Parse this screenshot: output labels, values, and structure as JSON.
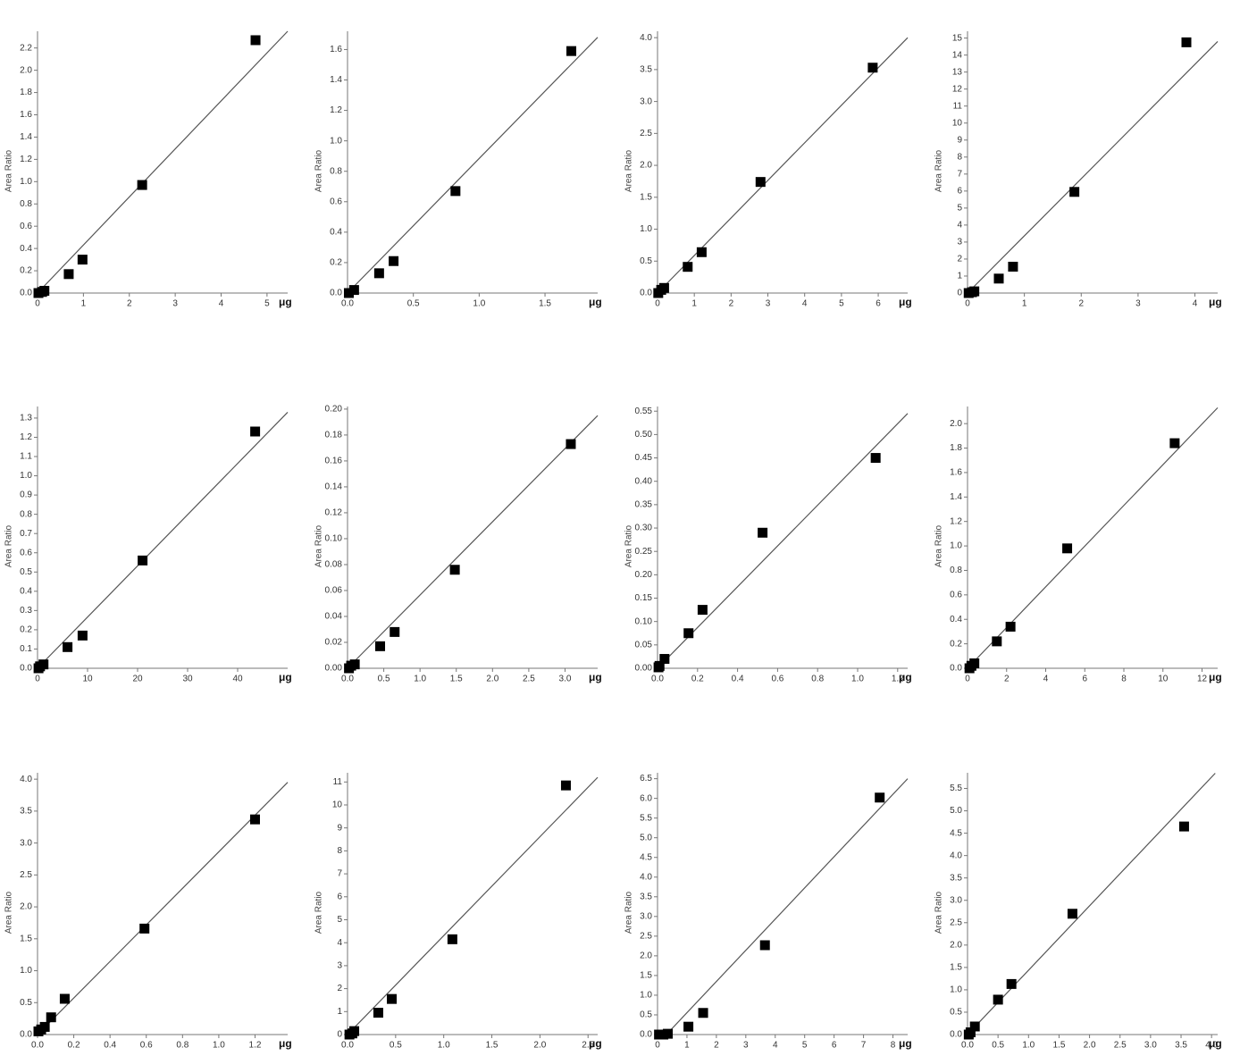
{
  "chart_data": [
    {
      "type": "scatter",
      "xlabel": "μg",
      "ylabel": "Area Ratio",
      "color": "#000000",
      "line_color": "#555555",
      "x": [
        0.02,
        0.1,
        0.15,
        0.68,
        0.98,
        2.28,
        4.75
      ],
      "y": [
        0,
        0.01,
        0.02,
        0.17,
        0.3,
        0.97,
        2.27
      ],
      "fit_line": {
        "x": [
          0,
          5.45
        ],
        "y": [
          0,
          2.35
        ]
      },
      "xlim": [
        0,
        5.45
      ],
      "ylim": [
        0,
        2.35
      ],
      "xticks": [
        0,
        1,
        2,
        3,
        4,
        5
      ],
      "yticks": [
        {
          "value": 0,
          "label": "0.0"
        },
        0.2,
        0.4,
        0.6,
        0.8,
        {
          "value": 1,
          "label": "1.0"
        },
        1.2,
        1.4,
        1.6,
        1.8,
        {
          "value": 2,
          "label": "2.0"
        },
        2.2
      ]
    },
    {
      "type": "scatter",
      "xlabel": "μg",
      "ylabel": "Area Ratio",
      "color": "#000000",
      "line_color": "#555555",
      "x": [
        0.01,
        0.05,
        0.24,
        0.35,
        0.82,
        1.7
      ],
      "y": [
        0,
        0.02,
        0.13,
        0.21,
        0.67,
        1.59
      ],
      "fit_line": {
        "x": [
          0,
          1.9
        ],
        "y": [
          0,
          1.68
        ]
      },
      "xlim": [
        0,
        1.9
      ],
      "ylim": [
        0,
        1.72
      ],
      "xticks": [
        {
          "value": 0,
          "label": "0.0"
        },
        0.5,
        {
          "value": 1,
          "label": "1.0"
        },
        1.5
      ],
      "yticks": [
        {
          "value": 0,
          "label": "0.0"
        },
        0.2,
        0.4,
        0.6,
        0.8,
        {
          "value": 1,
          "label": "1.0"
        },
        1.2,
        1.4,
        1.6
      ]
    },
    {
      "type": "scatter",
      "xlabel": "μg",
      "ylabel": "Area Ratio",
      "color": "#000000",
      "line_color": "#555555",
      "x": [
        0.02,
        0.1,
        0.18,
        0.82,
        1.2,
        2.8,
        5.85
      ],
      "y": [
        0,
        0.05,
        0.08,
        0.41,
        0.64,
        1.74,
        3.53
      ],
      "fit_line": {
        "x": [
          0,
          6.8
        ],
        "y": [
          0,
          4.0
        ]
      },
      "xlim": [
        0,
        6.8
      ],
      "ylim": [
        0,
        4.1
      ],
      "xticks": [
        0,
        1,
        2,
        3,
        4,
        5,
        6
      ],
      "yticks": [
        {
          "value": 0,
          "label": "0.0"
        },
        0.5,
        {
          "value": 1,
          "label": "1.0"
        },
        1.5,
        {
          "value": 2,
          "label": "2.0"
        },
        2.5,
        {
          "value": 3,
          "label": "3.0"
        },
        3.5,
        {
          "value": 4,
          "label": "4.0"
        }
      ]
    },
    {
      "type": "scatter",
      "xlabel": "μg",
      "ylabel": "Area Ratio",
      "color": "#000000",
      "line_color": "#555555",
      "x": [
        0.02,
        0.08,
        0.12,
        0.55,
        0.8,
        1.88,
        3.85
      ],
      "y": [
        0,
        0.05,
        0.1,
        0.85,
        1.55,
        5.95,
        14.75
      ],
      "fit_line": {
        "x": [
          0,
          4.4
        ],
        "y": [
          0,
          14.8
        ]
      },
      "xlim": [
        0,
        4.4
      ],
      "ylim": [
        0,
        15.4
      ],
      "xticks": [
        0,
        1,
        2,
        3,
        4
      ],
      "yticks": [
        0,
        1,
        2,
        3,
        4,
        5,
        6,
        7,
        8,
        9,
        10,
        11,
        12,
        13,
        14,
        15
      ]
    },
    {
      "type": "scatter",
      "xlabel": "μg",
      "ylabel": "Area Ratio",
      "color": "#000000",
      "line_color": "#555555",
      "x": [
        0.2,
        0.5,
        1.2,
        6,
        9,
        21,
        43.5
      ],
      "y": [
        0,
        0.01,
        0.02,
        0.11,
        0.17,
        0.56,
        1.23
      ],
      "fit_line": {
        "x": [
          0,
          50
        ],
        "y": [
          0,
          1.33
        ]
      },
      "xlim": [
        0,
        50
      ],
      "ylim": [
        0,
        1.36
      ],
      "xticks": [
        0,
        10,
        20,
        30,
        40
      ],
      "yticks": [
        {
          "value": 0,
          "label": "0.0"
        },
        0.1,
        0.2,
        0.3,
        0.4,
        0.5,
        0.6,
        0.7,
        0.8,
        0.9,
        {
          "value": 1,
          "label": "1.0"
        },
        1.1,
        1.2,
        1.3
      ]
    },
    {
      "type": "scatter",
      "xlabel": "μg",
      "ylabel": "Area Ratio",
      "color": "#000000",
      "line_color": "#555555",
      "x": [
        0.02,
        0.05,
        0.1,
        0.45,
        0.65,
        1.48,
        3.08
      ],
      "y": [
        0,
        0.002,
        0.003,
        0.017,
        0.028,
        0.076,
        0.173
      ],
      "fit_line": {
        "x": [
          0,
          3.45
        ],
        "y": [
          0,
          0.195
        ]
      },
      "xlim": [
        0,
        3.45
      ],
      "ylim": [
        0,
        0.202
      ],
      "xticks": [
        {
          "value": 0,
          "label": "0.0"
        },
        0.5,
        {
          "value": 1,
          "label": "1.0"
        },
        1.5,
        {
          "value": 2,
          "label": "2.0"
        },
        2.5,
        {
          "value": 3,
          "label": "3.0"
        }
      ],
      "yticks": [
        {
          "value": 0,
          "label": "0.00"
        },
        0.02,
        0.04,
        0.06,
        0.08,
        {
          "value": 0.1,
          "label": "0.10"
        },
        0.12,
        0.14,
        0.16,
        0.18,
        {
          "value": 0.2,
          "label": "0.20"
        }
      ]
    },
    {
      "type": "scatter",
      "xlabel": "μg",
      "ylabel": "Area Ratio",
      "color": "#000000",
      "line_color": "#555555",
      "x": [
        0.005,
        0.01,
        0.035,
        0.155,
        0.225,
        0.525,
        1.09
      ],
      "y": [
        0.002,
        0.005,
        0.02,
        0.075,
        0.125,
        0.29,
        0.45
      ],
      "fit_line": {
        "x": [
          0,
          1.25
        ],
        "y": [
          0,
          0.545
        ]
      },
      "xlim": [
        0,
        1.25
      ],
      "ylim": [
        0,
        0.56
      ],
      "xticks": [
        {
          "value": 0,
          "label": "0.0"
        },
        0.2,
        0.4,
        0.6,
        0.8,
        {
          "value": 1,
          "label": "1.0"
        },
        1.2
      ],
      "yticks": [
        {
          "value": 0,
          "label": "0.00"
        },
        0.05,
        {
          "value": 0.1,
          "label": "0.10"
        },
        0.15,
        {
          "value": 0.2,
          "label": "0.20"
        },
        0.25,
        {
          "value": 0.3,
          "label": "0.30"
        },
        0.35,
        {
          "value": 0.4,
          "label": "0.40"
        },
        0.45,
        {
          "value": 0.5,
          "label": "0.50"
        },
        0.55
      ]
    },
    {
      "type": "scatter",
      "xlabel": "μg",
      "ylabel": "Area Ratio",
      "color": "#000000",
      "line_color": "#555555",
      "x": [
        0.1,
        0.2,
        0.35,
        1.5,
        2.2,
        5.1,
        10.6
      ],
      "y": [
        0,
        0.02,
        0.04,
        0.22,
        0.34,
        0.98,
        1.84
      ],
      "fit_line": {
        "x": [
          0,
          12.8
        ],
        "y": [
          0,
          2.13
        ]
      },
      "xlim": [
        0,
        12.8
      ],
      "ylim": [
        0,
        2.14
      ],
      "xticks": [
        0,
        2,
        4,
        6,
        8,
        10,
        12
      ],
      "yticks": [
        {
          "value": 0,
          "label": "0.0"
        },
        0.2,
        0.4,
        0.6,
        0.8,
        {
          "value": 1,
          "label": "1.0"
        },
        1.2,
        1.4,
        1.6,
        1.8,
        {
          "value": 2,
          "label": "2.0"
        }
      ]
    },
    {
      "type": "scatter",
      "xlabel": "μg",
      "ylabel": "Area Ratio",
      "color": "#000000",
      "line_color": "#555555",
      "x": [
        0.005,
        0.02,
        0.04,
        0.075,
        0.15,
        0.59,
        1.2
      ],
      "y": [
        0.05,
        0.08,
        0.12,
        0.27,
        0.56,
        1.66,
        3.37
      ],
      "fit_line": {
        "x": [
          0,
          1.38
        ],
        "y": [
          0,
          3.95
        ]
      },
      "xlim": [
        0,
        1.38
      ],
      "ylim": [
        0,
        4.1
      ],
      "xticks": [
        {
          "value": 0,
          "label": "0.0"
        },
        0.2,
        0.4,
        0.6,
        0.8,
        {
          "value": 1,
          "label": "1.0"
        },
        1.2
      ],
      "yticks": [
        {
          "value": 0,
          "label": "0.0"
        },
        0.5,
        {
          "value": 1,
          "label": "1.0"
        },
        1.5,
        {
          "value": 2,
          "label": "2.0"
        },
        2.5,
        {
          "value": 3,
          "label": "3.0"
        },
        3.5,
        {
          "value": 4,
          "label": "4.0"
        }
      ]
    },
    {
      "type": "scatter",
      "xlabel": "μg",
      "ylabel": "Area Ratio",
      "color": "#000000",
      "line_color": "#555555",
      "x": [
        0.02,
        0.05,
        0.07,
        0.32,
        0.46,
        1.09,
        2.27
      ],
      "y": [
        0,
        0.05,
        0.15,
        0.95,
        1.55,
        4.15,
        10.85
      ],
      "fit_line": {
        "x": [
          0,
          2.6
        ],
        "y": [
          0,
          11.2
        ]
      },
      "xlim": [
        0,
        2.6
      ],
      "ylim": [
        0,
        11.4
      ],
      "xticks": [
        {
          "value": 0,
          "label": "0.0"
        },
        0.5,
        {
          "value": 1,
          "label": "1.0"
        },
        1.5,
        {
          "value": 2,
          "label": "2.0"
        },
        2.5
      ],
      "yticks": [
        0,
        1,
        2,
        3,
        4,
        5,
        6,
        7,
        8,
        9,
        10,
        11
      ]
    },
    {
      "type": "scatter",
      "xlabel": "μg",
      "ylabel": "Area Ratio",
      "color": "#000000",
      "line_color": "#555555",
      "x": [
        0.05,
        0.2,
        0.35,
        1.05,
        1.55,
        3.65,
        7.55
      ],
      "y": [
        0,
        0,
        0.02,
        0.2,
        0.55,
        2.27,
        6.02
      ],
      "fit_line": {
        "x": [
          0.3,
          8.5
        ],
        "y": [
          0,
          6.5
        ]
      },
      "xlim": [
        0,
        8.5
      ],
      "ylim": [
        0,
        6.65
      ],
      "xticks": [
        0,
        1,
        2,
        3,
        4,
        5,
        6,
        7,
        8
      ],
      "yticks": [
        {
          "value": 0,
          "label": "0.0"
        },
        0.5,
        {
          "value": 1,
          "label": "1.0"
        },
        1.5,
        {
          "value": 2,
          "label": "2.0"
        },
        2.5,
        {
          "value": 3,
          "label": "3.0"
        },
        3.5,
        {
          "value": 4,
          "label": "4.0"
        },
        4.5,
        {
          "value": 5,
          "label": "5.0"
        },
        5.5,
        {
          "value": 6,
          "label": "6.0"
        },
        6.5
      ]
    },
    {
      "type": "scatter",
      "xlabel": "μg",
      "ylabel": "Area Ratio",
      "color": "#000000",
      "line_color": "#555555",
      "x": [
        0.02,
        0.05,
        0.12,
        0.5,
        0.72,
        1.72,
        3.55
      ],
      "y": [
        0,
        0.05,
        0.18,
        0.78,
        1.13,
        2.7,
        4.65
      ],
      "fit_line": {
        "x": [
          0,
          4.06
        ],
        "y": [
          0,
          5.84
        ]
      },
      "xlim": [
        0,
        4.1
      ],
      "ylim": [
        0,
        5.85
      ],
      "xticks": [
        {
          "value": 0,
          "label": "0.0"
        },
        0.5,
        {
          "value": 1,
          "label": "1.0"
        },
        1.5,
        {
          "value": 2,
          "label": "2.0"
        },
        2.5,
        {
          "value": 3,
          "label": "3.0"
        },
        3.5,
        {
          "value": 4,
          "label": "4.0"
        }
      ],
      "yticks": [
        {
          "value": 0,
          "label": "0.0"
        },
        0.5,
        {
          "value": 1,
          "label": "1.0"
        },
        1.5,
        {
          "value": 2,
          "label": "2.0"
        },
        2.5,
        {
          "value": 3,
          "label": "3.0"
        },
        3.5,
        {
          "value": 4,
          "label": "4.0"
        },
        4.5,
        {
          "value": 5,
          "label": "5.0"
        },
        5.5
      ]
    }
  ]
}
